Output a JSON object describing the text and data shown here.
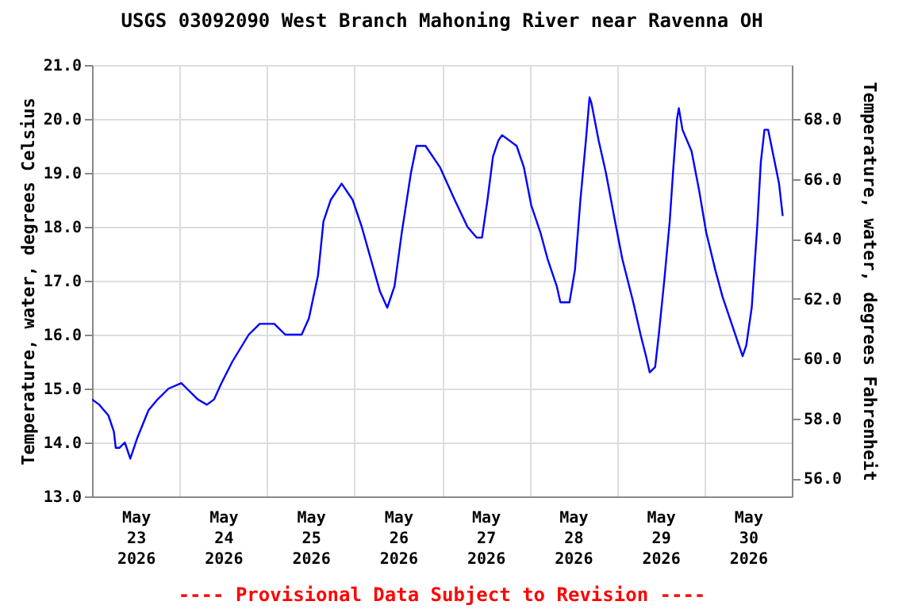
{
  "chart_data": {
    "type": "line",
    "title": "USGS 03092090 West Branch Mahoning River near Ravenna OH",
    "ylabel": "Temperature, water, degrees Celsius",
    "y2label": "Temperature, water, degrees Fahrenheit",
    "annotations": [
      "---- Provisional Data Subject to Revision ----"
    ],
    "series": [
      {
        "color": "#0000ff",
        "x": [
          "2026-05-23T00:00",
          "2026-05-23T02:00",
          "2026-05-23T04:30",
          "2026-05-23T06:00",
          "2026-05-23T06:30",
          "2026-05-23T07:30",
          "2026-05-23T09:00",
          "2026-05-23T10:30",
          "2026-05-23T12:30",
          "2026-05-23T15:30",
          "2026-05-23T18:00",
          "2026-05-23T21:00",
          "2026-05-24T00:30",
          "2026-05-24T02:00",
          "2026-05-24T05:00",
          "2026-05-24T07:30",
          "2026-05-24T09:30",
          "2026-05-24T11:30",
          "2026-05-24T14:30",
          "2026-05-24T19:00",
          "2026-05-24T22:00",
          "2026-05-25T02:00",
          "2026-05-25T05:00",
          "2026-05-25T09:30",
          "2026-05-25T11:30",
          "2026-05-25T14:00",
          "2026-05-25T15:30",
          "2026-05-25T17:30",
          "2026-05-25T20:30",
          "2026-05-25T23:30",
          "2026-05-26T02:00",
          "2026-05-26T04:30",
          "2026-05-26T07:00",
          "2026-05-26T09:00",
          "2026-05-26T11:00",
          "2026-05-26T13:00",
          "2026-05-26T15:30",
          "2026-05-26T17:00",
          "2026-05-26T19:30",
          "2026-05-26T23:30",
          "2026-05-27T03:30",
          "2026-05-27T07:00",
          "2026-05-27T09:30",
          "2026-05-27T11:00",
          "2026-05-27T12:30",
          "2026-05-27T14:00",
          "2026-05-27T15:30",
          "2026-05-27T16:30",
          "2026-05-27T20:30",
          "2026-05-27T22:30",
          "2026-05-28T00:30",
          "2026-05-28T03:00",
          "2026-05-28T05:00",
          "2026-05-28T07:30",
          "2026-05-28T08:30",
          "2026-05-28T11:00",
          "2026-05-28T12:30",
          "2026-05-28T14:00",
          "2026-05-28T15:30",
          "2026-05-28T16:30",
          "2026-05-28T17:00",
          "2026-05-28T19:00",
          "2026-05-28T21:00",
          "2026-05-28T23:30",
          "2026-05-29T01:30",
          "2026-05-29T04:30",
          "2026-05-29T06:30",
          "2026-05-29T08:00",
          "2026-05-29T09:00",
          "2026-05-29T10:30",
          "2026-05-29T11:30",
          "2026-05-29T13:00",
          "2026-05-29T14:30",
          "2026-05-29T15:30",
          "2026-05-29T16:30",
          "2026-05-29T17:00",
          "2026-05-29T18:00",
          "2026-05-29T20:30",
          "2026-05-29T22:30",
          "2026-05-30T00:30",
          "2026-05-30T03:00",
          "2026-05-30T05:00",
          "2026-05-30T07:30",
          "2026-05-30T09:30",
          "2026-05-30T10:30",
          "2026-05-30T11:30",
          "2026-05-30T13:00",
          "2026-05-30T14:30",
          "2026-05-30T15:30",
          "2026-05-30T16:30",
          "2026-05-30T17:30",
          "2026-05-30T19:00",
          "2026-05-30T20:30",
          "2026-05-30T21:30"
        ],
        "values": [
          14.8,
          14.7,
          14.5,
          14.2,
          13.9,
          13.9,
          14.0,
          13.7,
          14.1,
          14.6,
          14.8,
          15.0,
          15.1,
          15.0,
          14.8,
          14.7,
          14.8,
          15.1,
          15.5,
          16.0,
          16.2,
          16.2,
          16.0,
          16.0,
          16.3,
          17.1,
          18.1,
          18.5,
          18.8,
          18.5,
          18.0,
          17.4,
          16.8,
          16.5,
          16.9,
          17.9,
          19.0,
          19.5,
          19.5,
          19.1,
          18.5,
          18.0,
          17.8,
          17.8,
          18.5,
          19.3,
          19.6,
          19.7,
          19.5,
          19.1,
          18.4,
          17.9,
          17.4,
          16.9,
          16.6,
          16.6,
          17.2,
          18.5,
          19.6,
          20.4,
          20.3,
          19.6,
          19.0,
          18.1,
          17.4,
          16.6,
          16.0,
          15.6,
          15.3,
          15.4,
          16.0,
          17.0,
          18.1,
          19.1,
          20.0,
          20.2,
          19.8,
          19.4,
          18.7,
          17.9,
          17.2,
          16.7,
          16.2,
          15.8,
          15.6,
          15.8,
          16.5,
          18.0,
          19.2,
          19.8,
          19.8,
          19.3,
          18.8,
          18.2
        ]
      }
    ],
    "xlim": [
      "2026-05-23T00:00",
      "2026-05-31T00:00"
    ],
    "xticks": [
      {
        "value": "2026-05-23T00:00",
        "label": null
      },
      {
        "value": "2026-05-23T12:00",
        "label": "May 23 2026"
      },
      {
        "value": "2026-05-24T00:00",
        "label": null
      },
      {
        "value": "2026-05-24T12:00",
        "label": "May 24 2026"
      },
      {
        "value": "2026-05-25T00:00",
        "label": null
      },
      {
        "value": "2026-05-25T12:00",
        "label": "May 25 2026"
      },
      {
        "value": "2026-05-26T00:00",
        "label": null
      },
      {
        "value": "2026-05-26T12:00",
        "label": "May 26 2026"
      },
      {
        "value": "2026-05-27T00:00",
        "label": null
      },
      {
        "value": "2026-05-27T12:00",
        "label": "May 27 2026"
      },
      {
        "value": "2026-05-28T00:00",
        "label": null
      },
      {
        "value": "2026-05-28T12:00",
        "label": "May 28 2026"
      },
      {
        "value": "2026-05-29T00:00",
        "label": null
      },
      {
        "value": "2026-05-29T12:00",
        "label": "May 29 2026"
      },
      {
        "value": "2026-05-30T00:00",
        "label": null
      },
      {
        "value": "2026-05-30T12:00",
        "label": "May 30 2026"
      },
      {
        "value": "2026-05-31T00:00",
        "label": null
      }
    ],
    "ylim": [
      13.0,
      21.0
    ],
    "yticks": [
      {
        "value": 13,
        "label": "13.0"
      },
      {
        "value": 14,
        "label": "14.0"
      },
      {
        "value": 15,
        "label": "15.0"
      },
      {
        "value": 16,
        "label": "16.0"
      },
      {
        "value": 17,
        "label": "17.0"
      },
      {
        "value": 18,
        "label": "18.0"
      },
      {
        "value": 19,
        "label": "19.0"
      },
      {
        "value": 20,
        "label": "20.0"
      },
      {
        "value": 21,
        "label": "21.0"
      }
    ],
    "y2lim": [
      55.4,
      69.8
    ],
    "y2ticks": [
      {
        "value": 56,
        "label": "56.0"
      },
      {
        "value": 58,
        "label": "58.0"
      },
      {
        "value": 60,
        "label": "60.0"
      },
      {
        "value": 62,
        "label": "62.0"
      },
      {
        "value": 64,
        "label": "64.0"
      },
      {
        "value": 66,
        "label": "66.0"
      },
      {
        "value": 68,
        "label": "68.0"
      }
    ],
    "grid": true,
    "line_style": "solid",
    "marker": "none"
  }
}
